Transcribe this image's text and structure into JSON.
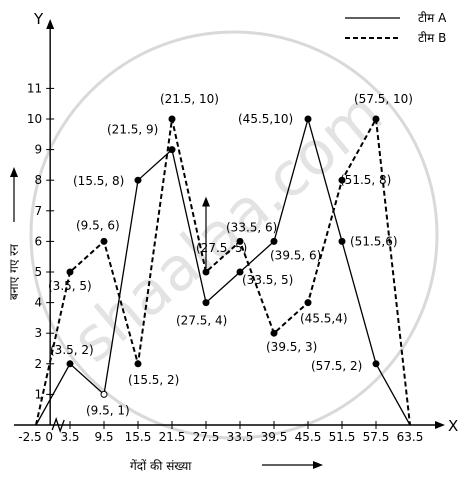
{
  "watermark": "shaalaa.com",
  "chart_data": {
    "type": "line",
    "title": "",
    "xlabel": "गेंदों की संख्या",
    "ylabel": "बनाए गए रन",
    "x_axis_letter": "X",
    "y_axis_letter": "Y",
    "xlim": [
      -2.5,
      63.5
    ],
    "ylim": [
      0,
      12
    ],
    "x_ticks": [
      "-2.5",
      "0",
      "3.5",
      "9.5",
      "15.5",
      "21.5",
      "27.5",
      "33.5",
      "39.5",
      "45.5",
      "51.5",
      "57.5",
      "63.5"
    ],
    "y_ticks": [
      "1",
      "2",
      "3",
      "4",
      "5",
      "6",
      "7",
      "8",
      "9",
      "10",
      "11"
    ],
    "legend_position": "top-right",
    "series": [
      {
        "name": "टीम A",
        "style": "solid",
        "color": "#000000",
        "points": [
          {
            "x": -2.5,
            "y": 0
          },
          {
            "x": 3.5,
            "y": 2,
            "label": "(3.5, 2)"
          },
          {
            "x": 9.5,
            "y": 1,
            "label": "(9.5, 1)"
          },
          {
            "x": 15.5,
            "y": 8,
            "label": "(15.5, 8)"
          },
          {
            "x": 21.5,
            "y": 9,
            "label": "(21.5, 9)"
          },
          {
            "x": 27.5,
            "y": 4,
            "label": "(27.5, 4)"
          },
          {
            "x": 33.5,
            "y": 5,
            "label": "(33.5, 5)"
          },
          {
            "x": 39.5,
            "y": 6,
            "label": "(39.5, 6)"
          },
          {
            "x": 45.5,
            "y": 10,
            "label": "(45.5,10)"
          },
          {
            "x": 51.5,
            "y": 6,
            "label": "(51.5,6)"
          },
          {
            "x": 57.5,
            "y": 2,
            "label": "(57.5, 2)"
          },
          {
            "x": 63.5,
            "y": 0
          }
        ]
      },
      {
        "name": "टीम B",
        "style": "dashed",
        "color": "#000000",
        "points": [
          {
            "x": -2.5,
            "y": 0
          },
          {
            "x": 3.5,
            "y": 5,
            "label": "(3.5, 5)"
          },
          {
            "x": 9.5,
            "y": 6,
            "label": "(9.5, 6)"
          },
          {
            "x": 15.5,
            "y": 2,
            "label": "(15.5, 2)"
          },
          {
            "x": 21.5,
            "y": 10,
            "label": "(21.5, 10)"
          },
          {
            "x": 27.5,
            "y": 5,
            "label": "(27.5, 5)"
          },
          {
            "x": 33.5,
            "y": 6,
            "label": "(33.5, 6)"
          },
          {
            "x": 39.5,
            "y": 3,
            "label": "(39.5, 3)"
          },
          {
            "x": 45.5,
            "y": 4,
            "label": "(45.5,4)"
          },
          {
            "x": 51.5,
            "y": 8,
            "label": "(51.5, 8)"
          },
          {
            "x": 57.5,
            "y": 10,
            "label": "(57.5, 10)"
          },
          {
            "x": 63.5,
            "y": 0
          }
        ]
      }
    ]
  }
}
